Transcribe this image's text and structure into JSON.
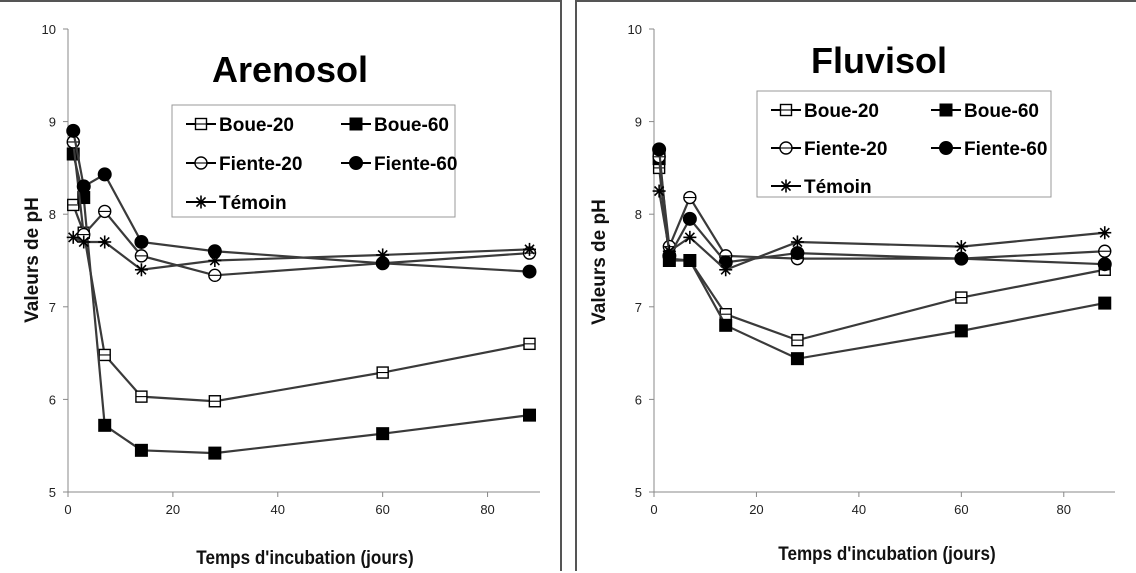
{
  "chart_data": [
    {
      "type": "line",
      "title": "Arenosol",
      "xlabel": "Temps d'incubation (jours)",
      "ylabel": "Valeurs de pH",
      "xlim": [
        0,
        90
      ],
      "ylim": [
        5,
        10
      ],
      "xticks": [
        "0",
        "20",
        "40",
        "60",
        "80"
      ],
      "yticks": [
        "5",
        "6",
        "7",
        "8",
        "9",
        "10"
      ],
      "grid": false,
      "legend_position": "top-right",
      "series": [
        {
          "name": "Boue-20",
          "marker": "square-open",
          "x": [
            1,
            3,
            7,
            14,
            28,
            60,
            88
          ],
          "y": [
            8.1,
            7.8,
            6.48,
            6.03,
            5.98,
            6.29,
            6.6
          ]
        },
        {
          "name": "Boue-60",
          "marker": "square-filled",
          "x": [
            1,
            3,
            7,
            14,
            28,
            60,
            88
          ],
          "y": [
            8.65,
            8.18,
            5.72,
            5.45,
            5.42,
            5.63,
            5.83
          ]
        },
        {
          "name": "Fiente-20",
          "marker": "circle-open",
          "x": [
            1,
            3,
            7,
            14,
            28,
            60,
            88
          ],
          "y": [
            8.78,
            7.78,
            8.03,
            7.55,
            7.34,
            7.47,
            7.58
          ]
        },
        {
          "name": "Fiente-60",
          "marker": "circle-filled",
          "x": [
            1,
            3,
            7,
            14,
            28,
            60,
            88
          ],
          "y": [
            8.9,
            8.3,
            8.43,
            7.7,
            7.6,
            7.47,
            7.38
          ]
        },
        {
          "name": "Témoin",
          "marker": "asterisk",
          "x": [
            1,
            3,
            7,
            14,
            28,
            60,
            88
          ],
          "y": [
            7.75,
            7.7,
            7.7,
            7.4,
            7.5,
            7.56,
            7.62
          ]
        }
      ]
    },
    {
      "type": "line",
      "title": "Fluvisol",
      "xlabel": "Temps d'incubation (jours)",
      "ylabel": "Valeurs de pH",
      "xlim": [
        0,
        90
      ],
      "ylim": [
        5,
        10
      ],
      "xticks": [
        "0",
        "20",
        "40",
        "60",
        "80"
      ],
      "yticks": [
        "5",
        "6",
        "7",
        "8",
        "9",
        "10"
      ],
      "grid": false,
      "legend_position": "top-right",
      "series": [
        {
          "name": "Boue-20",
          "marker": "square-open",
          "x": [
            1,
            3,
            7,
            14,
            28,
            60,
            88
          ],
          "y": [
            8.5,
            7.52,
            7.5,
            6.92,
            6.64,
            7.1,
            7.4
          ]
        },
        {
          "name": "Boue-60",
          "marker": "square-filled",
          "x": [
            1,
            3,
            7,
            14,
            28,
            60,
            88
          ],
          "y": [
            8.6,
            7.5,
            7.5,
            6.8,
            6.44,
            6.74,
            7.04
          ]
        },
        {
          "name": "Fiente-20",
          "marker": "circle-open",
          "x": [
            1,
            3,
            7,
            14,
            28,
            60,
            88
          ],
          "y": [
            8.62,
            7.65,
            8.18,
            7.55,
            7.52,
            7.52,
            7.6
          ]
        },
        {
          "name": "Fiente-60",
          "marker": "circle-filled",
          "x": [
            1,
            3,
            7,
            14,
            28,
            60,
            88
          ],
          "y": [
            8.7,
            7.55,
            7.95,
            7.48,
            7.58,
            7.52,
            7.46
          ]
        },
        {
          "name": "Témoin",
          "marker": "asterisk",
          "x": [
            1,
            3,
            7,
            14,
            28,
            60,
            88
          ],
          "y": [
            8.25,
            7.6,
            7.75,
            7.4,
            7.7,
            7.65,
            7.8
          ]
        }
      ]
    }
  ]
}
